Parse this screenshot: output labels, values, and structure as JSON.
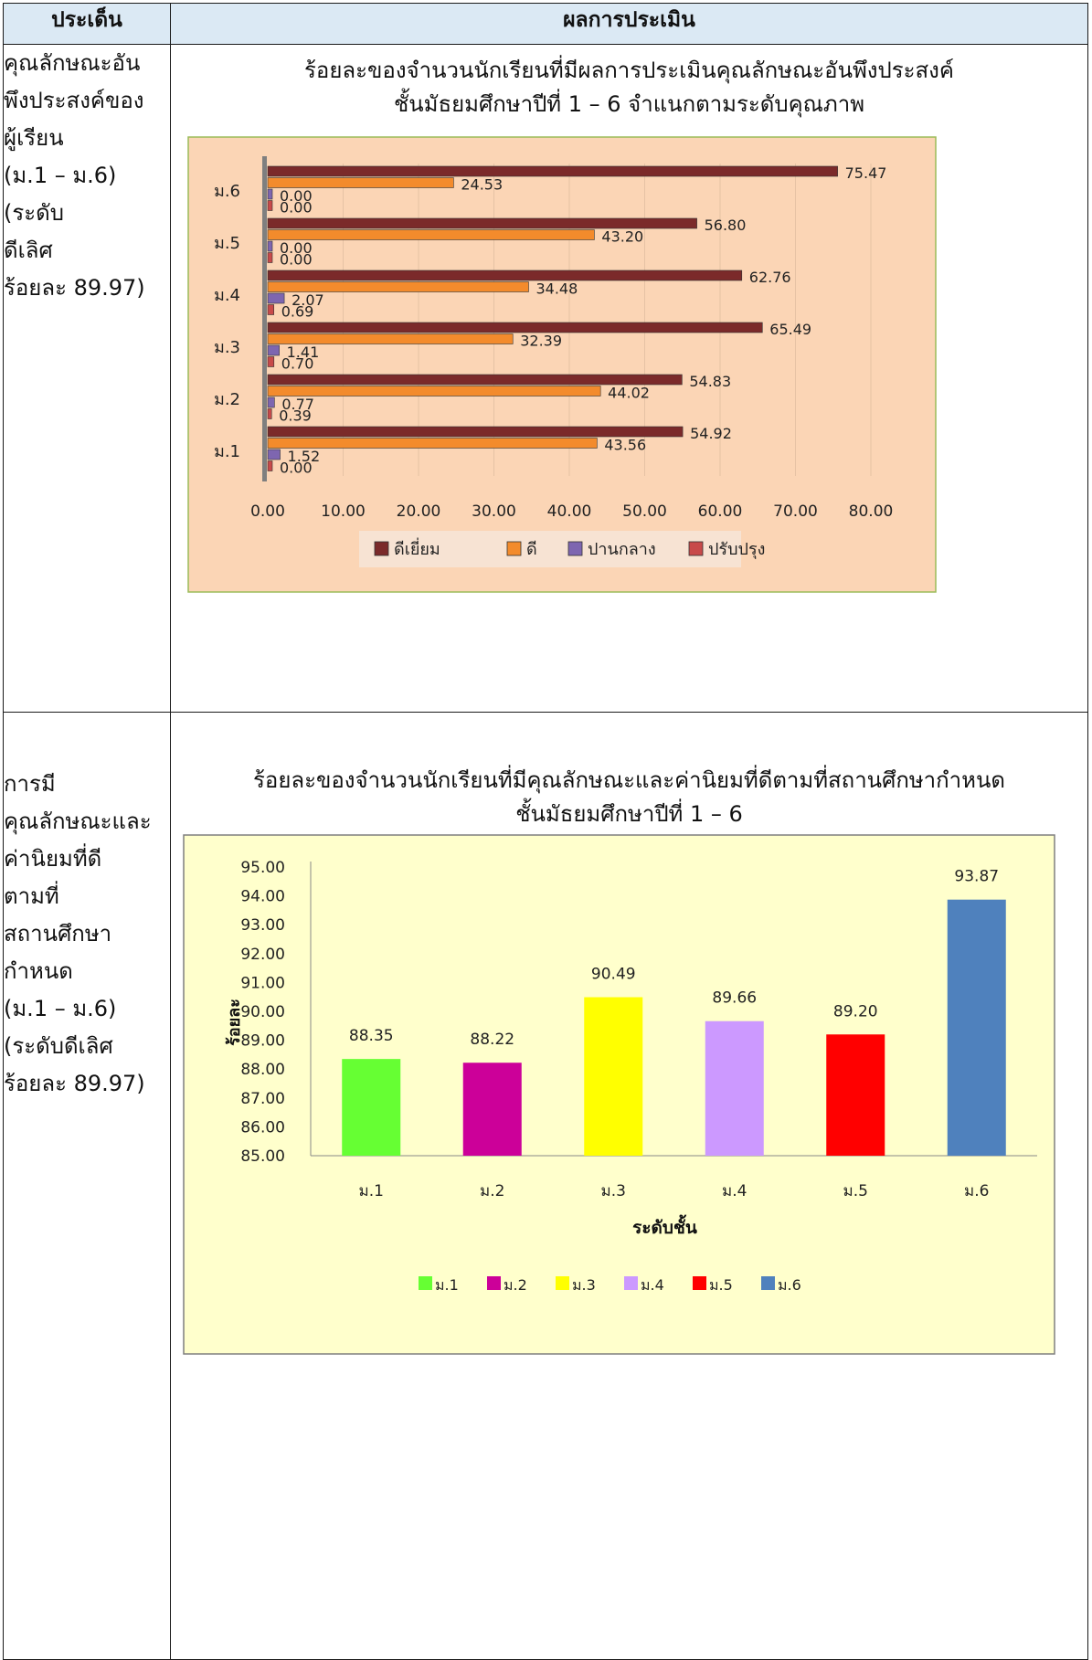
{
  "table": {
    "header_left": "ประเด็น",
    "header_right": "ผลการประเมิน"
  },
  "row1": {
    "label_lines": [
      "คุณลักษณะอัน",
      "พึงประสงค์ของ",
      "ผู้เรียน",
      "(ม.1 – ม.6)",
      "(ระดับ",
      "ดีเลิศ",
      "ร้อยละ 89.97)"
    ],
    "title_line1": "ร้อยละของจำนวนนักเรียนที่มีผลการประเมินคุณลักษณะอันพึงประสงค์",
    "title_line2": "ชั้นมัธยมศึกษาปีที่  1 – 6  จำแนกตามระดับคุณภาพ"
  },
  "row2": {
    "label_lines": [
      "การมี",
      "คุณลักษณะและ",
      "ค่านิยมที่ดี",
      "ตามที่",
      "สถานศึกษา",
      "กำหนด",
      "(ม.1 – ม.6)",
      "(ระดับดีเลิศ",
      "ร้อยละ 89.97)"
    ],
    "title_line1": "ร้อยละของจำนวนนักเรียนที่มีคุณลักษณะและค่านิยมที่ดีตามที่สถานศึกษากำหนด",
    "title_line2": "ชั้นมัธยมศึกษาปีที่  1 – 6"
  },
  "chart_data": [
    {
      "type": "bar",
      "orientation": "horizontal",
      "categories": [
        "ม.1",
        "ม.2",
        "ม.3",
        "ม.4",
        "ม.5",
        "ม.6"
      ],
      "series": [
        {
          "name": "ดีเยี่ยม",
          "color": "#7b2a2a",
          "values": [
            54.92,
            54.83,
            65.49,
            62.76,
            56.8,
            75.47
          ],
          "labels": [
            "54.92",
            "54.83",
            "65.49",
            "62.76",
            "56.80",
            "75.47"
          ]
        },
        {
          "name": "ดี",
          "color": "#f38b2c",
          "values": [
            43.56,
            44.02,
            32.39,
            34.48,
            43.2,
            24.53
          ],
          "labels": [
            "43.56",
            "44.02",
            "32.39",
            "34.48",
            "43.20",
            "24.53"
          ]
        },
        {
          "name": "ปานกลาง",
          "color": "#7e66b0",
          "values": [
            1.52,
            0.77,
            1.41,
            2.07,
            0.0,
            0.0
          ],
          "labels": [
            "1.52",
            "0.77",
            "1.41",
            "2.07",
            "0.00",
            "0.00"
          ]
        },
        {
          "name": "ปรับปรุง",
          "color": "#c84a4a",
          "values": [
            0.0,
            0.39,
            0.7,
            0.69,
            0.0,
            0.0
          ],
          "labels": [
            "0.00",
            "0.39",
            "0.70",
            "0.69",
            "0.00",
            "0.00"
          ]
        }
      ],
      "xticks": [
        "0.00",
        "10.00",
        "20.00",
        "30.00",
        "40.00",
        "50.00",
        "60.00",
        "70.00",
        "80.00"
      ],
      "xlim": [
        0,
        80
      ],
      "legend": "bottom",
      "background": "#fbd5b5"
    },
    {
      "type": "bar",
      "categories": [
        "ม.1",
        "ม.2",
        "ม.3",
        "ม.4",
        "ม.5",
        "ม.6"
      ],
      "values": [
        88.35,
        88.22,
        90.49,
        89.66,
        89.2,
        93.87
      ],
      "labels": [
        "88.35",
        "88.22",
        "90.49",
        "89.66",
        "89.20",
        "93.87"
      ],
      "colors": [
        "#66ff33",
        "#cc0099",
        "#ffff00",
        "#cc99ff",
        "#ff0000",
        "#4f81bd"
      ],
      "yticks": [
        "85.00",
        "86.00",
        "87.00",
        "88.00",
        "89.00",
        "90.00",
        "91.00",
        "92.00",
        "93.00",
        "94.00",
        "95.00"
      ],
      "ylim": [
        85,
        95
      ],
      "xlabel": "ระดับชั้น",
      "ylabel": "ร้อยละ",
      "legend": "bottom",
      "background": "#ffffcc"
    }
  ]
}
